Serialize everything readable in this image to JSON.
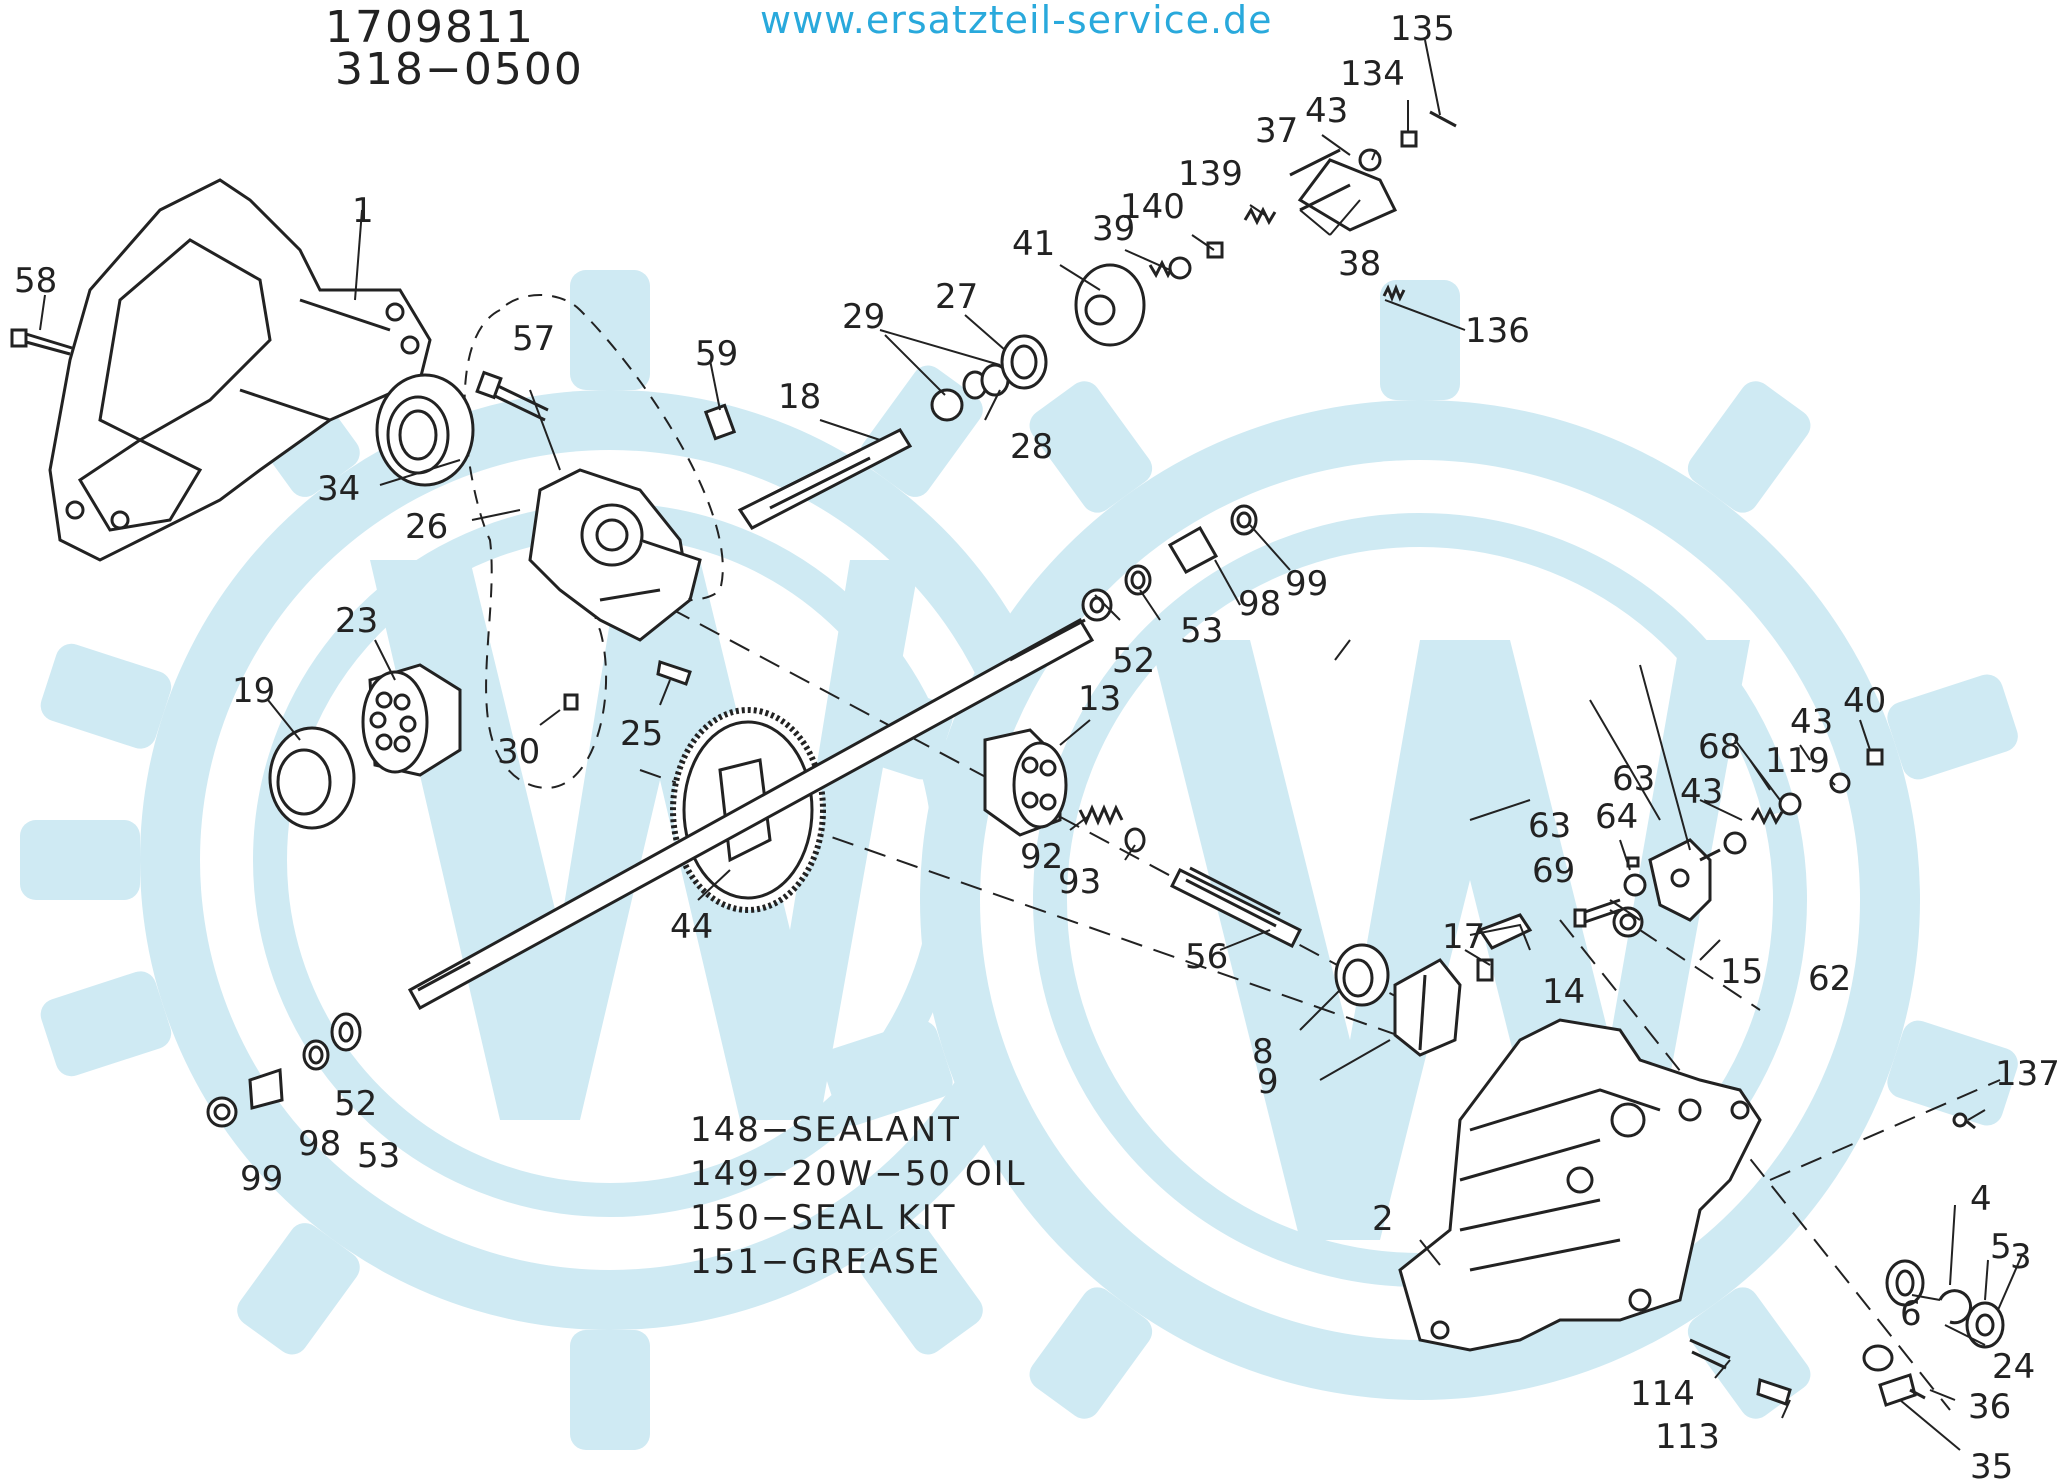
{
  "header": {
    "doc_number": "1709811",
    "model_number": "318−0500",
    "website": "www.ersatzteil-service.de"
  },
  "notes": [
    "148−SEALANT",
    "149−20W−50 OIL",
    "150−SEAL KIT",
    "151−GREASE"
  ],
  "callouts": {
    "c1": "1",
    "c2": "2",
    "c3": "3",
    "c4": "4",
    "c5": "5",
    "c6": "6",
    "c8": "8",
    "c9": "9",
    "c13": "13",
    "c14": "14",
    "c15": "15",
    "c17": "17",
    "c18": "18",
    "c19": "19",
    "c23": "23",
    "c24": "24",
    "c25": "25",
    "c26": "26",
    "c27": "27",
    "c28": "28",
    "c29": "29",
    "c30": "30",
    "c34": "34",
    "c35": "35",
    "c36": "36",
    "c37": "37",
    "c38": "38",
    "c39": "39",
    "c40": "40",
    "c41": "41",
    "c43a": "43",
    "c43b": "43",
    "c43c": "43",
    "c44": "44",
    "c52a": "52",
    "c52b": "52",
    "c53a": "53",
    "c53b": "53",
    "c56": "56",
    "c57": "57",
    "c58": "58",
    "c59": "59",
    "c62": "62",
    "c63a": "63",
    "c63b": "63",
    "c64": "64",
    "c68": "68",
    "c69": "69",
    "c92": "92",
    "c93": "93",
    "c98a": "98",
    "c98b": "98",
    "c99a": "99",
    "c99b": "99",
    "c113": "113",
    "c114": "114",
    "c119": "119",
    "c134": "134",
    "c135": "135",
    "c136": "136",
    "c137": "137",
    "c139": "139",
    "c140": "140"
  },
  "colors": {
    "watermark": "#cfeaf3",
    "line": "#222222",
    "website": "#29a9dc"
  }
}
